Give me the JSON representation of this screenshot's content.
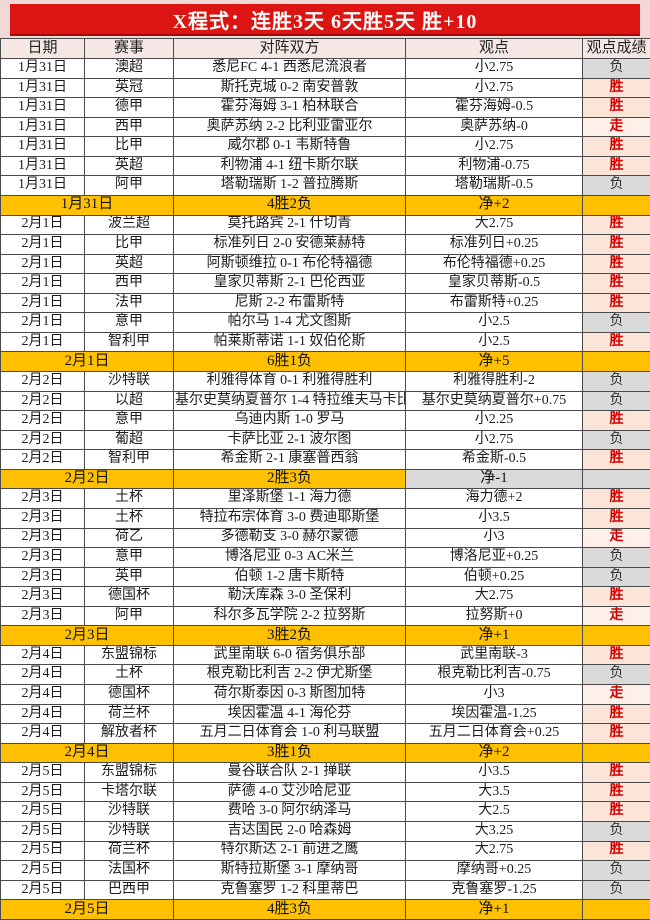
{
  "title": "X程式：连胜3天 6天胜5天 胜+10",
  "columns": [
    "日期",
    "赛事",
    "对阵双方",
    "观点",
    "观点成绩"
  ],
  "colors": {
    "title_bg": "#dc1412",
    "frame_bg": "#f3d9d5",
    "header_bg": "#f5e8e4",
    "summary_bg": "#ffc000",
    "win_bg": "#fbe5d8",
    "win_text": "#d40000",
    "push_bg": "#fdf0e8",
    "loss_bg": "#dadada",
    "loss_text": "#333333"
  },
  "result_legend": {
    "win": "胜",
    "loss": "负",
    "push": "走"
  },
  "rows": [
    {
      "type": "match",
      "date": "1月31日",
      "league": "澳超",
      "matchup": "悉尼FC 4-1 西悉尼流浪者",
      "view": "小2.75",
      "result": "负",
      "outcome": "loss"
    },
    {
      "type": "match",
      "date": "1月31日",
      "league": "英冠",
      "matchup": "斯托克城 0-2 南安普敦",
      "view": "小2.75",
      "result": "胜",
      "outcome": "win"
    },
    {
      "type": "match",
      "date": "1月31日",
      "league": "德甲",
      "matchup": "霍芬海姆 3-1 柏林联合",
      "view": "霍芬海姆-0.5",
      "result": "胜",
      "outcome": "win"
    },
    {
      "type": "match",
      "date": "1月31日",
      "league": "西甲",
      "matchup": "奥萨苏纳 2-2 比利亚雷亚尔",
      "view": "奥萨苏纳-0",
      "result": "走",
      "outcome": "push"
    },
    {
      "type": "match",
      "date": "1月31日",
      "league": "比甲",
      "matchup": "威尔郡 0-1 韦斯特鲁",
      "view": "小2.75",
      "result": "胜",
      "outcome": "win"
    },
    {
      "type": "match",
      "date": "1月31日",
      "league": "英超",
      "matchup": "利物浦 4-1 纽卡斯尔联",
      "view": "利物浦-0.75",
      "result": "胜",
      "outcome": "win"
    },
    {
      "type": "match",
      "date": "1月31日",
      "league": "阿甲",
      "matchup": "塔勒瑞斯 1-2 普拉腾斯",
      "view": "塔勒瑞斯-0.5",
      "result": "负",
      "outcome": "loss"
    },
    {
      "type": "summary",
      "date": "1月31日",
      "record": "4胜2负",
      "net": "净+2",
      "negative": false
    },
    {
      "type": "match",
      "date": "2月1日",
      "league": "波兰超",
      "matchup": "莫托路宾 2-1 什切青",
      "view": "大2.75",
      "result": "胜",
      "outcome": "win"
    },
    {
      "type": "match",
      "date": "2月1日",
      "league": "比甲",
      "matchup": "标准列日 2-0 安德莱赫特",
      "view": "标准列日+0.25",
      "result": "胜",
      "outcome": "win"
    },
    {
      "type": "match",
      "date": "2月1日",
      "league": "英超",
      "matchup": "阿斯顿维拉 0-1 布伦特福德",
      "view": "布伦特福德+0.25",
      "result": "胜",
      "outcome": "win"
    },
    {
      "type": "match",
      "date": "2月1日",
      "league": "西甲",
      "matchup": "皇家贝蒂斯 2-1 巴伦西亚",
      "view": "皇家贝蒂斯-0.5",
      "result": "胜",
      "outcome": "win"
    },
    {
      "type": "match",
      "date": "2月1日",
      "league": "法甲",
      "matchup": "尼斯 2-2 布雷斯特",
      "view": "布雷斯特+0.25",
      "result": "胜",
      "outcome": "win"
    },
    {
      "type": "match",
      "date": "2月1日",
      "league": "意甲",
      "matchup": "帕尔马 1-4 尤文图斯",
      "view": "小2.5",
      "result": "负",
      "outcome": "loss"
    },
    {
      "type": "match",
      "date": "2月1日",
      "league": "智利甲",
      "matchup": "帕莱斯蒂诺 1-1 奴伯伦斯",
      "view": "小2.5",
      "result": "胜",
      "outcome": "win"
    },
    {
      "type": "summary",
      "date": "2月1日",
      "record": "6胜1负",
      "net": "净+5",
      "negative": false
    },
    {
      "type": "match",
      "date": "2月2日",
      "league": "沙特联",
      "matchup": "利雅得体育 0-1 利雅得胜利",
      "view": "利雅得胜利-2",
      "result": "负",
      "outcome": "loss"
    },
    {
      "type": "match",
      "date": "2月2日",
      "league": "以超",
      "matchup": "基尔史莫纳夏普尔 1-4 特拉维夫马卡比",
      "view": "基尔史莫纳夏普尔+0.75",
      "result": "负",
      "outcome": "loss"
    },
    {
      "type": "match",
      "date": "2月2日",
      "league": "意甲",
      "matchup": "乌迪内斯 1-0 罗马",
      "view": "小2.25",
      "result": "胜",
      "outcome": "win"
    },
    {
      "type": "match",
      "date": "2月2日",
      "league": "葡超",
      "matchup": "卡萨比亚 2-1 波尔图",
      "view": "小2.75",
      "result": "负",
      "outcome": "loss"
    },
    {
      "type": "match",
      "date": "2月2日",
      "league": "智利甲",
      "matchup": "希金斯 2-1 康塞普西翁",
      "view": "希金斯-0.5",
      "result": "胜",
      "outcome": "win"
    },
    {
      "type": "summary",
      "date": "2月2日",
      "record": "2胜3负",
      "net": "净-1",
      "negative": true
    },
    {
      "type": "match",
      "date": "2月3日",
      "league": "土杯",
      "matchup": "里泽斯堡 1-1 海力德",
      "view": "海力德+2",
      "result": "胜",
      "outcome": "win"
    },
    {
      "type": "match",
      "date": "2月3日",
      "league": "土杯",
      "matchup": "特拉布宗体育 3-0 费迪耶斯堡",
      "view": "小3.5",
      "result": "胜",
      "outcome": "win"
    },
    {
      "type": "match",
      "date": "2月3日",
      "league": "荷乙",
      "matchup": "多德勒支 3-0 赫尔蒙德",
      "view": "小3",
      "result": "走",
      "outcome": "push"
    },
    {
      "type": "match",
      "date": "2月3日",
      "league": "意甲",
      "matchup": "博洛尼亚 0-3 AC米兰",
      "view": "博洛尼亚+0.25",
      "result": "负",
      "outcome": "loss"
    },
    {
      "type": "match",
      "date": "2月3日",
      "league": "英甲",
      "matchup": "伯顿 1-2 唐卡斯特",
      "view": "伯顿+0.25",
      "result": "负",
      "outcome": "loss"
    },
    {
      "type": "match",
      "date": "2月3日",
      "league": "德国杯",
      "matchup": "勒沃库森 3-0 圣保利",
      "view": "大2.75",
      "result": "胜",
      "outcome": "win"
    },
    {
      "type": "match",
      "date": "2月3日",
      "league": "阿甲",
      "matchup": "科尔多瓦学院 2-2 拉努斯",
      "view": "拉努斯+0",
      "result": "走",
      "outcome": "push"
    },
    {
      "type": "summary",
      "date": "2月3日",
      "record": "3胜2负",
      "net": "净+1",
      "negative": false
    },
    {
      "type": "match",
      "date": "2月4日",
      "league": "东盟锦标",
      "matchup": "武里南联 6-0 宿务俱乐部",
      "view": "武里南联-3",
      "result": "胜",
      "outcome": "win"
    },
    {
      "type": "match",
      "date": "2月4日",
      "league": "土杯",
      "matchup": "根克勒比利吉 2-2 伊尤斯堡",
      "view": "根克勒比利吉-0.75",
      "result": "负",
      "outcome": "loss"
    },
    {
      "type": "match",
      "date": "2月4日",
      "league": "德国杯",
      "matchup": "荷尔斯泰因 0-3 斯图加特",
      "view": "小3",
      "result": "走",
      "outcome": "push"
    },
    {
      "type": "match",
      "date": "2月4日",
      "league": "荷兰杯",
      "matchup": "埃因霍温 4-1 海伦芬",
      "view": "埃因霍温-1.25",
      "result": "胜",
      "outcome": "win"
    },
    {
      "type": "match",
      "date": "2月4日",
      "league": "解放者杯",
      "matchup": "五月二日体育会 1-0 利马联盟",
      "view": "五月二日体育会+0.25",
      "result": "胜",
      "outcome": "win"
    },
    {
      "type": "summary",
      "date": "2月4日",
      "record": "3胜1负",
      "net": "净+2",
      "negative": false
    },
    {
      "type": "match",
      "date": "2月5日",
      "league": "东盟锦标",
      "matchup": "曼谷联合队 2-1 掸联",
      "view": "小3.5",
      "result": "胜",
      "outcome": "win"
    },
    {
      "type": "match",
      "date": "2月5日",
      "league": "卡塔尔联",
      "matchup": "萨德 4-0 艾沙哈尼亚",
      "view": "大3.5",
      "result": "胜",
      "outcome": "win"
    },
    {
      "type": "match",
      "date": "2月5日",
      "league": "沙特联",
      "matchup": "费哈 3-0 阿尔纳泽马",
      "view": "大2.5",
      "result": "胜",
      "outcome": "win"
    },
    {
      "type": "match",
      "date": "2月5日",
      "league": "沙特联",
      "matchup": "吉达国民 2-0 哈森姆",
      "view": "大3.25",
      "result": "负",
      "outcome": "loss"
    },
    {
      "type": "match",
      "date": "2月5日",
      "league": "荷兰杯",
      "matchup": "特尔斯达 2-1 前进之鹰",
      "view": "大2.75",
      "result": "胜",
      "outcome": "win"
    },
    {
      "type": "match",
      "date": "2月5日",
      "league": "法国杯",
      "matchup": "斯特拉斯堡 3-1 摩纳哥",
      "view": "摩纳哥+0.25",
      "result": "负",
      "outcome": "loss"
    },
    {
      "type": "match",
      "date": "2月5日",
      "league": "巴西甲",
      "matchup": "克鲁塞罗 1-2 科里蒂巴",
      "view": "克鲁塞罗-1.25",
      "result": "负",
      "outcome": "loss"
    },
    {
      "type": "summary",
      "date": "2月5日",
      "record": "4胜3负",
      "net": "净+1",
      "negative": false
    }
  ]
}
